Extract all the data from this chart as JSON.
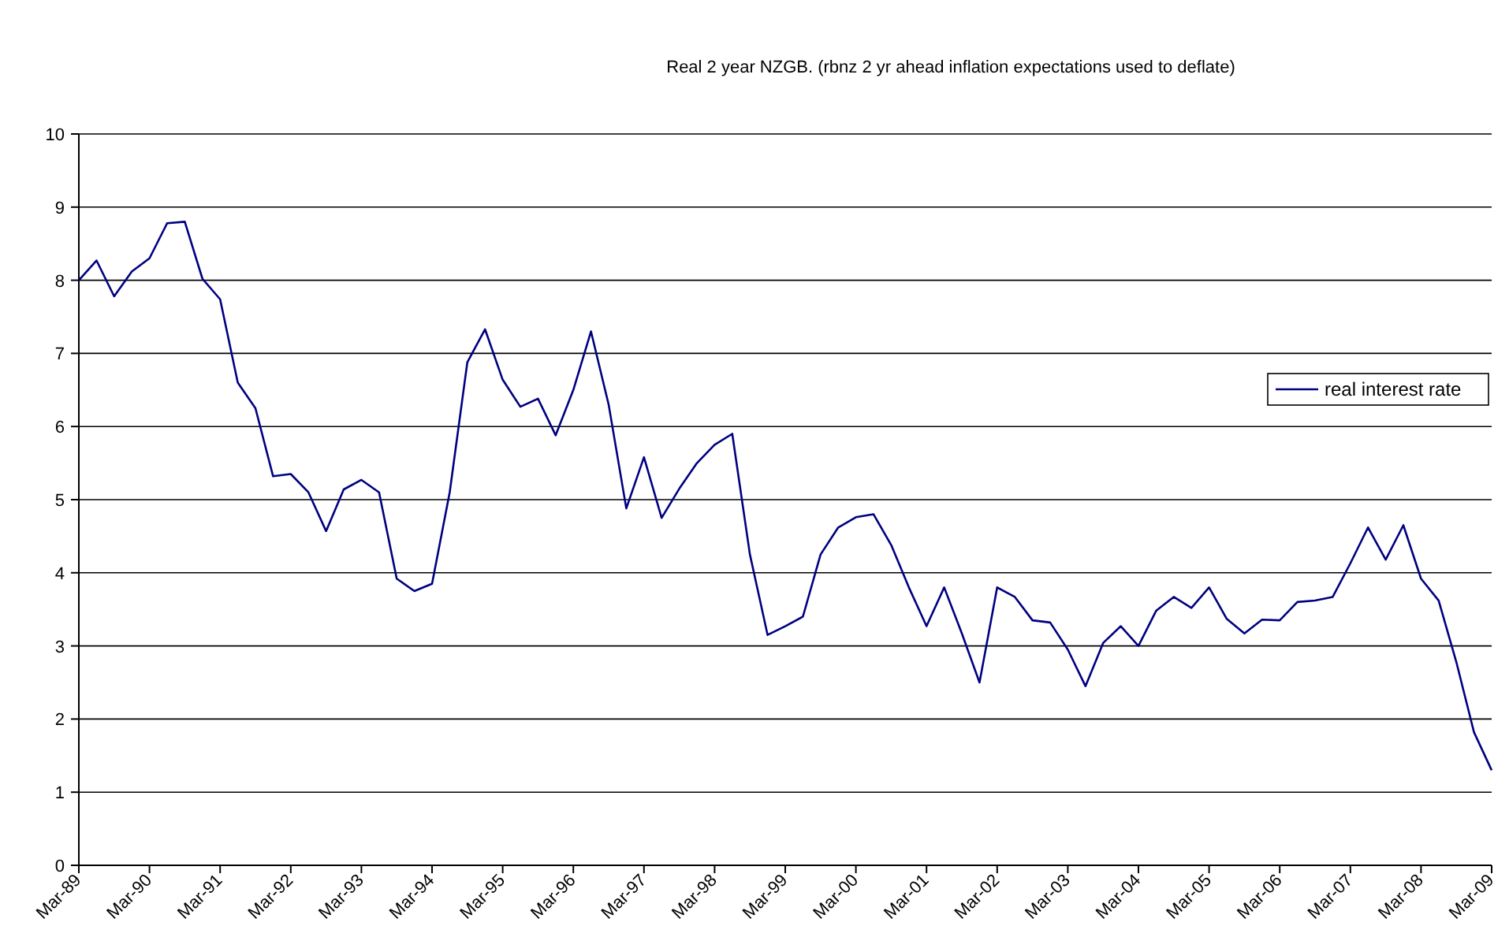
{
  "chart_data": {
    "type": "line",
    "title": "Real 2 year NZGB. (rbnz 2 yr ahead inflation expectations used to deflate)",
    "categories": [
      "Mar-89",
      null,
      null,
      null,
      "Mar-90",
      null,
      null,
      null,
      "Mar-91",
      null,
      null,
      null,
      "Mar-92",
      null,
      null,
      null,
      "Mar-93",
      null,
      null,
      null,
      "Mar-94",
      null,
      null,
      null,
      "Mar-95",
      null,
      null,
      null,
      "Mar-96",
      null,
      null,
      null,
      "Mar-97",
      null,
      null,
      null,
      "Mar-98",
      null,
      null,
      null,
      "Mar-99",
      null,
      null,
      null,
      "Mar-00",
      null,
      null,
      null,
      "Mar-01",
      null,
      null,
      null,
      "Mar-02",
      null,
      null,
      null,
      "Mar-03",
      null,
      null,
      null,
      "Mar-04",
      null,
      null,
      null,
      "Mar-05",
      null,
      null,
      null,
      "Mar-06",
      null,
      null,
      null,
      "Mar-07",
      null,
      null,
      null,
      "Mar-08",
      null,
      null,
      null,
      "Mar-09"
    ],
    "series": [
      {
        "name": "real interest rate",
        "color": "#000080",
        "values": [
          8.0,
          8.27,
          7.78,
          8.12,
          8.3,
          8.78,
          8.8,
          8.02,
          7.74,
          6.6,
          6.25,
          5.32,
          5.35,
          5.1,
          4.57,
          5.14,
          5.27,
          5.1,
          3.92,
          3.75,
          3.85,
          5.1,
          6.88,
          7.33,
          6.64,
          6.27,
          6.38,
          5.88,
          6.5,
          7.3,
          6.3,
          4.88,
          5.58,
          4.75,
          5.15,
          5.5,
          5.75,
          5.9,
          4.25,
          3.15,
          3.27,
          3.4,
          4.25,
          4.62,
          4.76,
          4.8,
          4.38,
          3.8,
          3.27,
          3.8,
          3.17,
          2.5,
          3.8,
          3.67,
          3.35,
          3.32,
          2.95,
          2.45,
          3.04,
          3.27,
          3.0,
          3.48,
          3.67,
          3.52,
          3.8,
          3.37,
          3.17,
          3.36,
          3.35,
          3.6,
          3.62,
          3.67,
          4.13,
          4.62,
          4.18,
          4.65,
          3.92,
          3.62,
          2.78,
          1.82,
          1.3
        ]
      }
    ],
    "ylim": [
      0,
      10
    ],
    "yticks": [
      0,
      1,
      2,
      3,
      4,
      5,
      6,
      7,
      8,
      9,
      10
    ],
    "grid": "y",
    "legend": "right",
    "marker": "none",
    "line_style": "solid"
  }
}
